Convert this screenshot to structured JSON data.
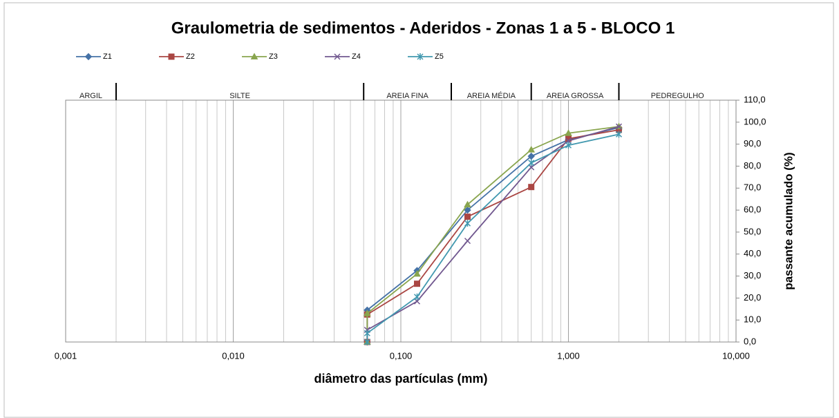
{
  "chart_data": {
    "type": "line",
    "title": "Graulometria de sedimentos - Aderidos - Zonas 1 a 5 - BLOCO 1",
    "xlabel": "diâmetro das partículas  (mm)",
    "ylabel": "passante acumulado (%)",
    "xscale": "log",
    "xlim": [
      0.001,
      10
    ],
    "xticks": [
      {
        "value": 0.001,
        "label": "0,001"
      },
      {
        "value": 0.01,
        "label": "0,010"
      },
      {
        "value": 0.1,
        "label": "0,100"
      },
      {
        "value": 1,
        "label": "1,000"
      },
      {
        "value": 10,
        "label": "10,000"
      }
    ],
    "ylim": [
      0,
      110
    ],
    "yticks": [
      {
        "value": 0,
        "label": "0,0"
      },
      {
        "value": 10,
        "label": "10,0"
      },
      {
        "value": 20,
        "label": "20,0"
      },
      {
        "value": 30,
        "label": "30,0"
      },
      {
        "value": 40,
        "label": "40,0"
      },
      {
        "value": 50,
        "label": "50,0"
      },
      {
        "value": 60,
        "label": "60,0"
      },
      {
        "value": 70,
        "label": "70,0"
      },
      {
        "value": 80,
        "label": "80,0"
      },
      {
        "value": 90,
        "label": "90,0"
      },
      {
        "value": 100,
        "label": "100,0"
      },
      {
        "value": 110,
        "label": "110,0"
      }
    ],
    "grid": "x-minor",
    "legend": "top",
    "zones": [
      {
        "label": "ARGIL",
        "from": 0.001,
        "to": 0.002
      },
      {
        "label": "SILTE",
        "from": 0.002,
        "to": 0.06
      },
      {
        "label": "AREIA FINA",
        "from": 0.06,
        "to": 0.2
      },
      {
        "label": "AREIA MÉDIA",
        "from": 0.2,
        "to": 0.6
      },
      {
        "label": "AREIA GROSSA",
        "from": 0.6,
        "to": 2
      },
      {
        "label": "PEDREGULHO",
        "from": 2,
        "to": 10
      }
    ],
    "x": [
      0.063,
      0.063,
      0.125,
      0.25,
      0.6,
      1.0,
      2.0
    ],
    "series": [
      {
        "name": "Z1",
        "color": "#4572a7",
        "marker": "diamond",
        "values": [
          0,
          14.5,
          32.5,
          60,
          84.5,
          92,
          97.5
        ]
      },
      {
        "name": "Z2",
        "color": "#aa4643",
        "marker": "square",
        "values": [
          0,
          12.5,
          26.5,
          57,
          70.5,
          92.5,
          96.5
        ]
      },
      {
        "name": "Z3",
        "color": "#89a54e",
        "marker": "triangle",
        "values": [
          0,
          13,
          31,
          62.5,
          87.5,
          95,
          98
        ]
      },
      {
        "name": "Z4",
        "color": "#71588f",
        "marker": "x",
        "values": [
          0,
          5.5,
          18.5,
          46,
          79.5,
          91.5,
          98
        ]
      },
      {
        "name": "Z5",
        "color": "#4198af",
        "marker": "star",
        "values": [
          0,
          4,
          20.5,
          54,
          81.5,
          89.5,
          94.5
        ]
      }
    ]
  }
}
